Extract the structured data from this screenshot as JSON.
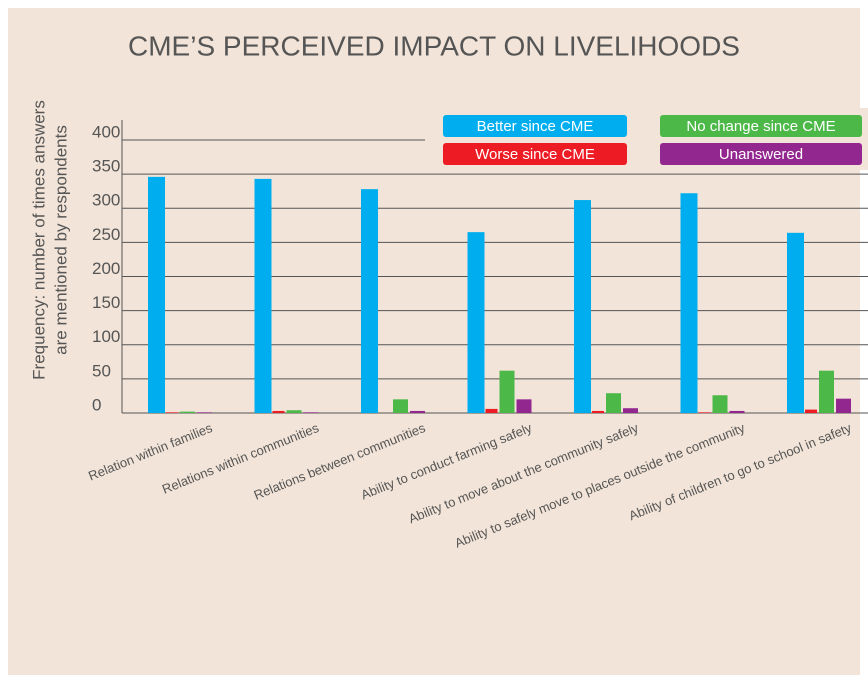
{
  "chart_data": {
    "type": "bar",
    "title": "CME’S PERCEIVED IMPACT ON LIVELIHOODS",
    "ylabel": [
      "Frequency: number of times answers",
      "are mentioned by respondents"
    ],
    "categories": [
      "Relation within families",
      "Relations within communities",
      "Relations between communities",
      "Ability to conduct farming safely",
      "Ability to move about the community safely",
      "Ability to safely move to places outside the community",
      "Ability of children to go to school in safety"
    ],
    "series": [
      {
        "name": "Better since CME",
        "color": "#00aeef",
        "values": [
          346,
          343,
          328,
          265,
          312,
          322,
          264
        ]
      },
      {
        "name": "Worse since CME",
        "color": "#ed1c24",
        "values": [
          1,
          3,
          0,
          6,
          3,
          1,
          5
        ]
      },
      {
        "name": "No change since CME",
        "color": "#4cb848",
        "values": [
          2,
          4,
          20,
          62,
          29,
          26,
          62
        ]
      },
      {
        "name": "Unanswered",
        "color": "#92278f",
        "values": [
          1,
          1,
          3,
          20,
          7,
          3,
          21
        ]
      }
    ],
    "ylim": [
      0,
      400
    ],
    "yticks": [
      0,
      50,
      100,
      150,
      200,
      250,
      300,
      350,
      400
    ],
    "grid": true
  }
}
